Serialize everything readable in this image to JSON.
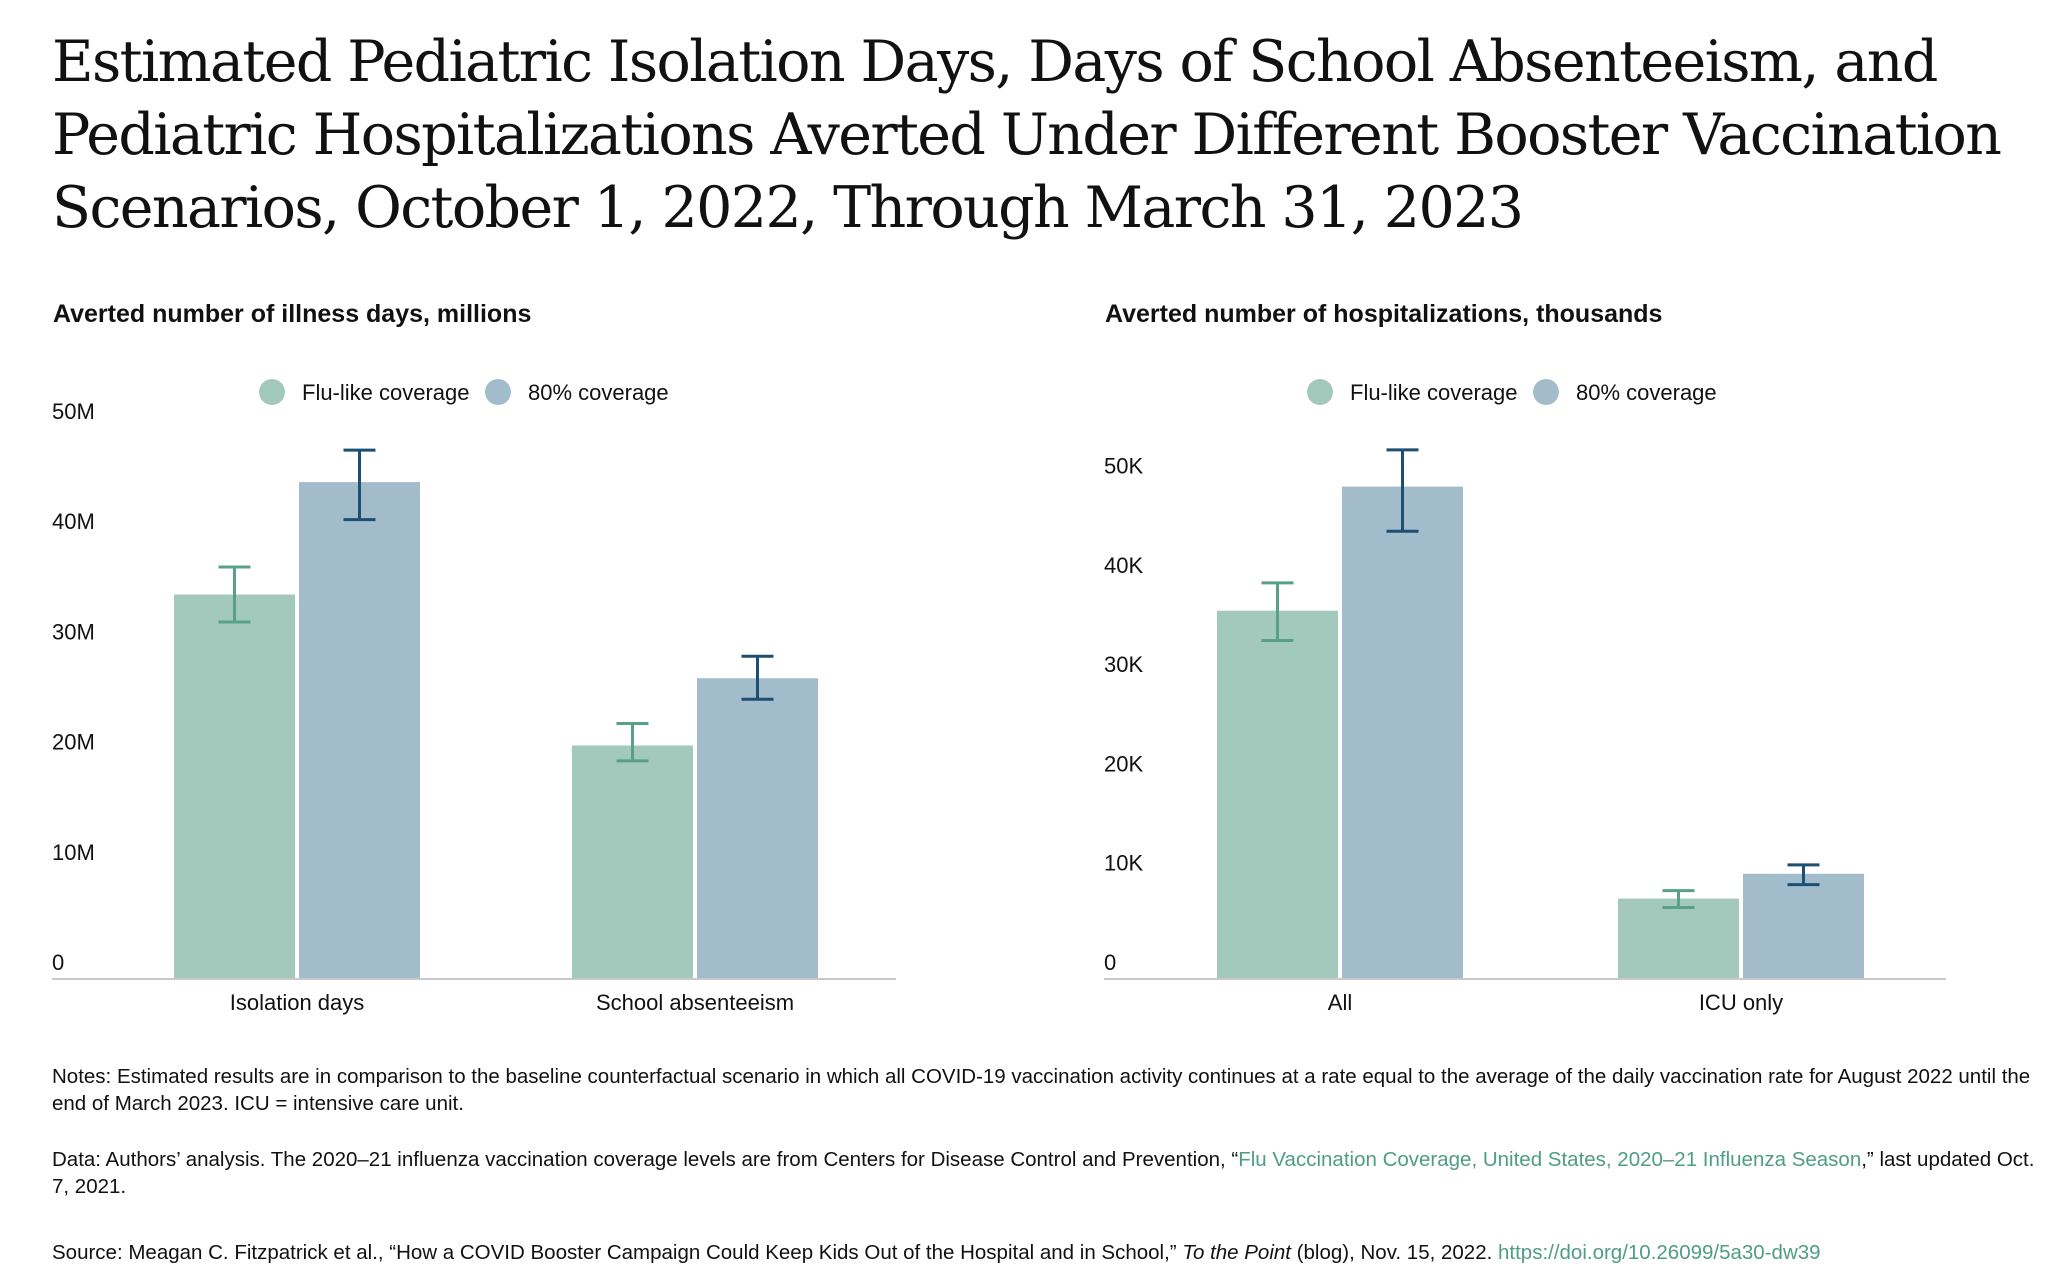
{
  "title": "Estimated Pediatric Isolation Days, Days of School Absenteeism, and Pediatric Hospitalizations Averted Under Different Booster Vaccination Scenarios, October 1, 2022, Through March 31, 2023",
  "colors": {
    "flu_bar": "#a3c9bd",
    "flu_err": "#58a086",
    "pct80_bar": "#a2bccb",
    "pct80_err": "#1d4f75",
    "axis": "#c9c9c9"
  },
  "chart_data": [
    {
      "type": "bar",
      "title": "Averted number of illness days, millions",
      "categories": [
        "Isolation days",
        "School absenteeism"
      ],
      "series": [
        {
          "name": "Flu-like coverage",
          "values": [
            34.8,
            21.1
          ],
          "error_low": [
            32.3,
            19.7
          ],
          "error_high": [
            37.3,
            23.1
          ]
        },
        {
          "name": "80% coverage",
          "values": [
            45.0,
            27.2
          ],
          "error_low": [
            41.6,
            25.3
          ],
          "error_high": [
            47.9,
            29.2
          ]
        }
      ],
      "ylim": [
        0,
        50
      ],
      "yticks": [
        0,
        10,
        20,
        30,
        40,
        50
      ],
      "ytick_labels": [
        "0",
        "10M",
        "20M",
        "30M",
        "40M",
        "50M"
      ],
      "legend": "top-center",
      "grid": false
    },
    {
      "type": "bar",
      "title": "Averted number of hospitalizations, thousands",
      "categories": [
        "All",
        "ICU only"
      ],
      "series": [
        {
          "name": "Flu-like coverage",
          "values": [
            37.0,
            8.0
          ],
          "error_low": [
            34.0,
            7.1
          ],
          "error_high": [
            39.8,
            8.8
          ]
        },
        {
          "name": "80% coverage",
          "values": [
            49.5,
            10.5
          ],
          "error_low": [
            45.0,
            9.4
          ],
          "error_high": [
            53.2,
            11.4
          ]
        }
      ],
      "ylim": [
        0,
        55
      ],
      "yticks": [
        0,
        10,
        20,
        30,
        40,
        50
      ],
      "ytick_labels": [
        "0",
        "10K",
        "20K",
        "30K",
        "40K",
        "50K"
      ],
      "legend": "top-center",
      "grid": false
    }
  ],
  "notes": {
    "notes_text": "Notes: Estimated results are in comparison to the baseline counterfactual scenario in which all COVID-19 vaccination activity continues at a rate equal to the average of the daily vaccination rate for August 2022 until the end of March 2023. ICU = intensive care unit.",
    "data_prefix": "Data: Authors’ analysis. The 2020–21 influenza vaccination coverage levels are from Centers for Disease Control and Prevention, “",
    "data_link": "Flu Vaccination Coverage, United States, 2020–21 Influenza Season",
    "data_suffix": ",” last updated Oct. 7, 2021.",
    "source_prefix": "Source: Meagan C. Fitzpatrick et al., “How a COVID Booster Campaign Could Keep Kids Out of the Hospital and in School,” ",
    "source_italic": "To the Point",
    "source_middle": " (blog), Nov. 15, 2022. ",
    "source_link": "https://doi.org/10.26099/5a30-dw39"
  }
}
